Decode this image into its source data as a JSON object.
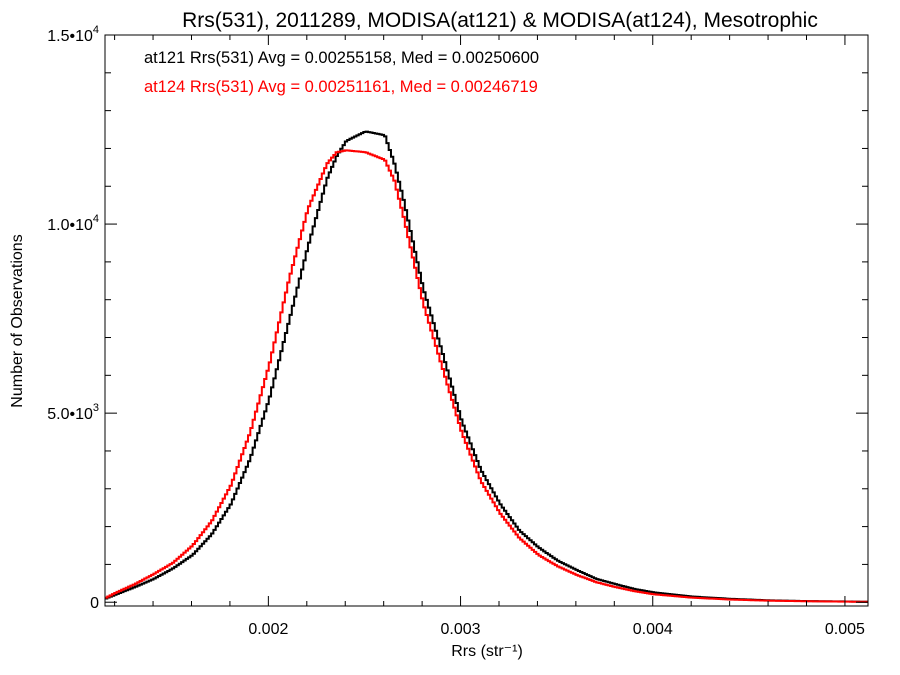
{
  "chart_data": {
    "type": "line",
    "title": "Rrs(531), 2011289, MODISA(at121) & MODISA(at124), Mesotrophic",
    "xlabel": "Rrs (str⁻¹)",
    "ylabel": "Number of Observations",
    "xlim": [
      0.00115,
      0.00512
    ],
    "ylim": [
      -100,
      15000
    ],
    "x_ticks": [
      0.002,
      0.003,
      0.004,
      0.005
    ],
    "x_tick_labels": [
      "0.002",
      "0.003",
      "0.004",
      "0.005"
    ],
    "y_ticks": [
      0,
      5000,
      10000,
      15000
    ],
    "y_tick_labels": [
      {
        "mantissa": "0",
        "exponent": ""
      },
      {
        "mantissa": "5.0•10",
        "exponent": "3"
      },
      {
        "mantissa": "1.0•10",
        "exponent": "4"
      },
      {
        "mantissa": "1.5•10",
        "exponent": "4"
      }
    ],
    "annotations": [
      {
        "text": "at121 Rrs(531) Avg = 0.00255158, Med = 0.00250600",
        "color": "#000000"
      },
      {
        "text": "at124 Rrs(531) Avg = 0.00251161, Med = 0.00246719",
        "color": "#ff0000"
      }
    ],
    "series": [
      {
        "name": "at121",
        "color": "#000000",
        "x": [
          0.00115,
          0.0012,
          0.0013,
          0.0014,
          0.0015,
          0.0016,
          0.0017,
          0.0018,
          0.0019,
          0.002,
          0.0021,
          0.0022,
          0.0023,
          0.00235,
          0.0024,
          0.0025,
          0.0026,
          0.00265,
          0.0027,
          0.0028,
          0.0029,
          0.003,
          0.0031,
          0.0032,
          0.0033,
          0.0034,
          0.0035,
          0.0036,
          0.0037,
          0.0038,
          0.0039,
          0.004,
          0.0042,
          0.0044,
          0.0046,
          0.0048,
          0.005,
          0.00512
        ],
        "y": [
          100,
          200,
          400,
          620,
          900,
          1250,
          1800,
          2600,
          3800,
          5400,
          7400,
          9400,
          11200,
          11800,
          12200,
          12450,
          12350,
          11600,
          10600,
          8300,
          6600,
          4800,
          3500,
          2600,
          1900,
          1450,
          1100,
          850,
          620,
          480,
          350,
          260,
          150,
          90,
          50,
          30,
          20,
          10
        ]
      },
      {
        "name": "at124",
        "color": "#ff0000",
        "x": [
          0.00115,
          0.0012,
          0.0013,
          0.0014,
          0.0015,
          0.0016,
          0.0017,
          0.0018,
          0.0019,
          0.002,
          0.0021,
          0.0022,
          0.0023,
          0.00235,
          0.0024,
          0.0025,
          0.0026,
          0.00265,
          0.0027,
          0.0028,
          0.0029,
          0.003,
          0.0031,
          0.0032,
          0.0033,
          0.0034,
          0.0035,
          0.0036,
          0.0037,
          0.0038,
          0.0039,
          0.004,
          0.0042,
          0.0044,
          0.0046,
          0.0048,
          0.005,
          0.00512
        ],
        "y": [
          120,
          250,
          480,
          750,
          1050,
          1500,
          2150,
          3100,
          4500,
          6300,
          8500,
          10400,
          11600,
          11900,
          11950,
          11900,
          11700,
          11150,
          10150,
          7900,
          6200,
          4500,
          3200,
          2350,
          1700,
          1250,
          950,
          720,
          530,
          400,
          290,
          210,
          120,
          70,
          40,
          25,
          15,
          10
        ]
      }
    ]
  }
}
